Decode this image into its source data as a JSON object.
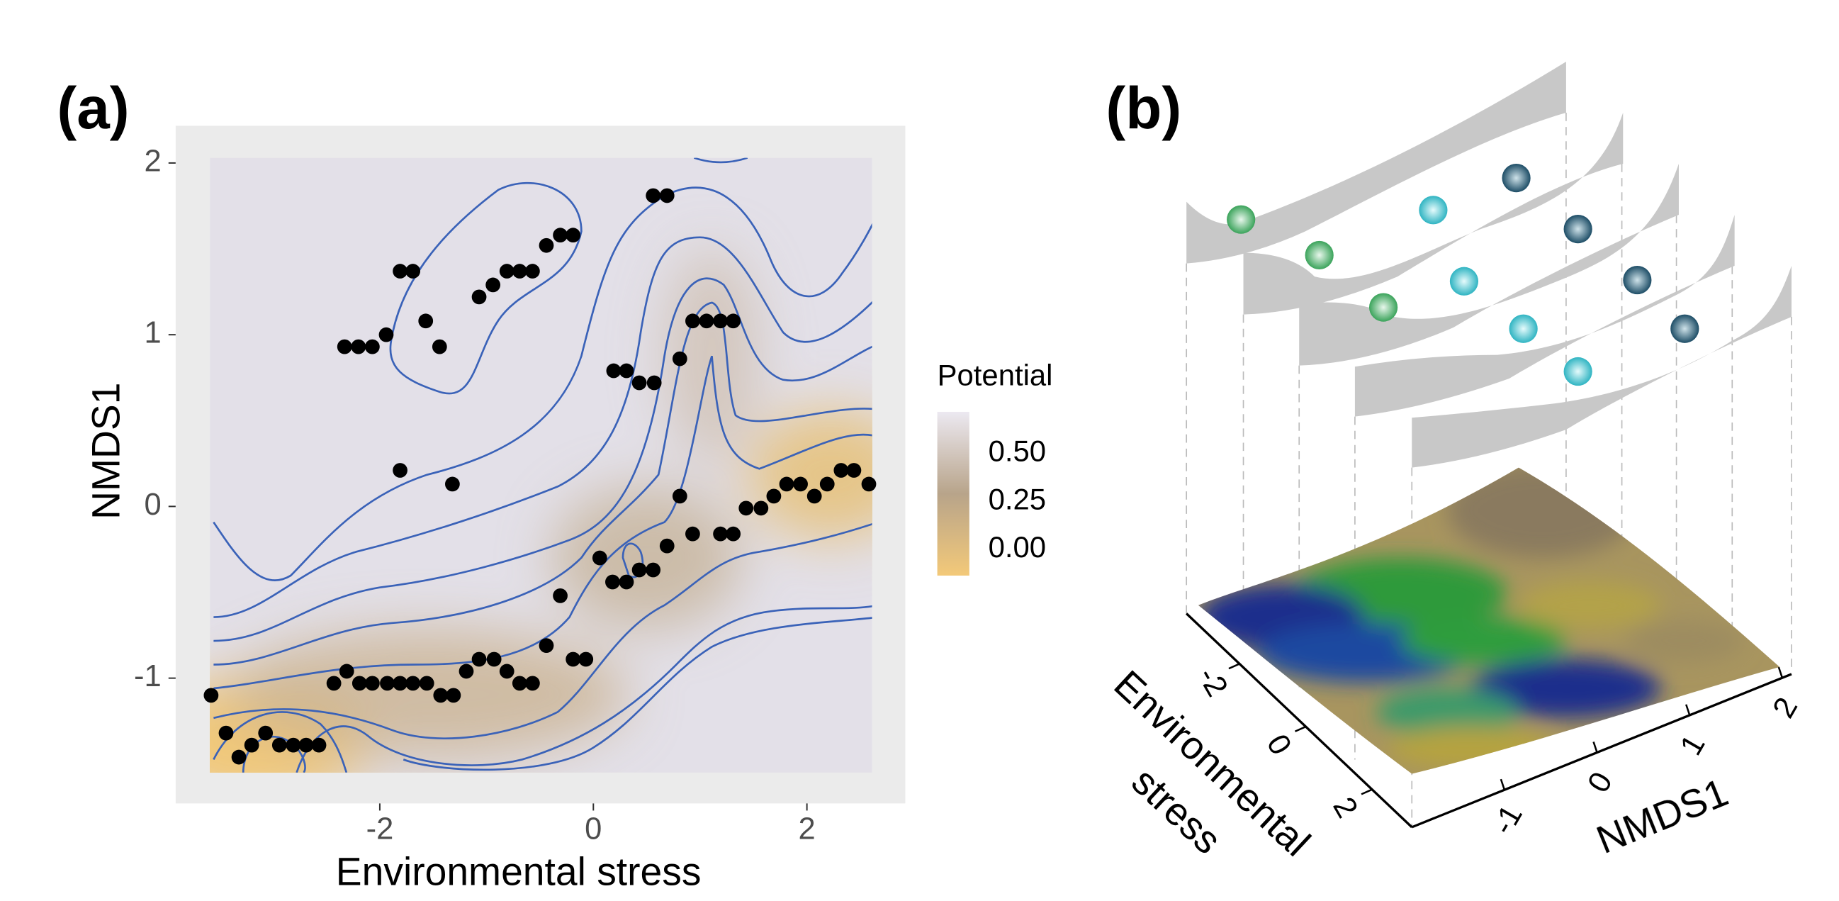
{
  "chart_data": [
    {
      "type": "scatter",
      "panel_label": "(a)",
      "xlabel": "Environmental stress",
      "ylabel": "NMDS1",
      "x": [
        -3.58,
        -3.44,
        -3.32,
        -3.2,
        -3.07,
        -2.94,
        -2.81,
        -2.69,
        -2.57,
        -2.43,
        -2.31,
        -2.19,
        -2.07,
        -1.93,
        -1.81,
        -1.69,
        -1.56,
        -1.43,
        -1.31,
        -1.19,
        -1.07,
        -0.93,
        -0.81,
        -0.69,
        -0.57,
        -0.44,
        -0.31,
        -0.19,
        -0.07,
        0.06,
        0.18,
        0.31,
        0.43,
        0.56,
        0.69,
        0.81,
        0.93,
        1.19,
        1.31,
        1.43,
        1.57,
        1.69,
        1.81,
        1.94,
        2.07,
        2.19,
        2.32,
        2.44,
        2.58,
        -2.33,
        -2.2,
        -2.07,
        -1.94,
        -1.81,
        -1.69,
        -1.57,
        -1.44,
        -1.07,
        -0.94,
        -0.81,
        -0.69,
        -0.57,
        -0.44,
        -0.31,
        -0.19,
        -1.81,
        -1.32,
        0.19,
        0.31,
        0.43,
        0.57,
        0.56,
        0.69,
        0.81,
        0.93,
        1.06,
        1.19,
        1.31
      ],
      "y": [
        -1.1,
        -1.32,
        -1.46,
        -1.39,
        -1.32,
        -1.39,
        -1.39,
        -1.39,
        -1.39,
        -1.03,
        -0.96,
        -1.03,
        -1.03,
        -1.03,
        -1.03,
        -1.03,
        -1.03,
        -1.1,
        -1.1,
        -0.96,
        -0.89,
        -0.89,
        -0.96,
        -1.03,
        -1.03,
        -0.81,
        -0.52,
        -0.89,
        -0.89,
        -0.3,
        -0.44,
        -0.44,
        -0.37,
        -0.37,
        -0.23,
        0.06,
        -0.16,
        -0.16,
        -0.16,
        -0.01,
        -0.01,
        0.06,
        0.13,
        0.13,
        0.06,
        0.13,
        0.21,
        0.21,
        0.13,
        0.93,
        0.93,
        0.93,
        1.0,
        1.37,
        1.37,
        1.08,
        0.93,
        1.22,
        1.29,
        1.37,
        1.37,
        1.37,
        1.52,
        1.58,
        1.58,
        0.21,
        0.13,
        0.79,
        0.79,
        0.72,
        0.72,
        1.81,
        1.81,
        0.86,
        1.08,
        1.08,
        1.08,
        1.08
      ],
      "color": "#000000",
      "xlim": [
        -3.59,
        2.61
      ],
      "ylim": [
        -1.55,
        2.03
      ],
      "xticks": [
        -2,
        0,
        2
      ],
      "yticks": [
        -1,
        0,
        1,
        2
      ],
      "colorbar": {
        "title": "Potential",
        "lim": [
          -0.136,
          0.716
        ],
        "ticks": [
          {
            "value": 0,
            "label": "0.00"
          },
          {
            "value": 0.25,
            "label": "0.25"
          },
          {
            "value": 0.5,
            "label": "0.50"
          }
        ],
        "colors": [
          "#f3c979",
          "#b8a48a",
          "#ece9f1"
        ]
      }
    },
    {
      "type": "surface3d",
      "panel_label": "(b)",
      "xlabel": [
        "Environmental",
        "stress"
      ],
      "ylabel": "NMDS1",
      "xlim": [
        -3.6,
        3.2
      ],
      "xticks": [
        -2,
        0,
        2
      ],
      "ylim": [
        -2,
        2.1
      ],
      "yticks": [
        -1,
        0,
        1,
        2
      ]
    }
  ]
}
